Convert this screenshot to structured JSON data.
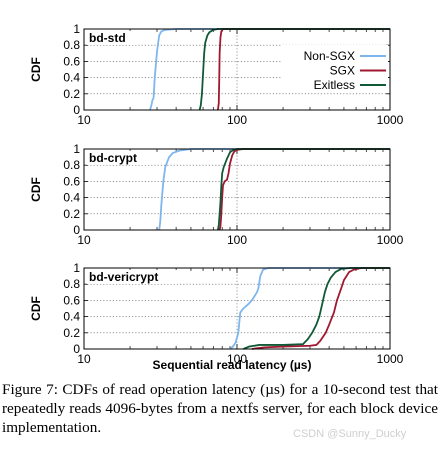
{
  "chart_data": {
    "type": "line",
    "x_scale": "log",
    "xlabel": "Sequential read latency (µs)",
    "ylabel": "CDF",
    "xlim": [
      10,
      1000
    ],
    "ylim": [
      0,
      1
    ],
    "x_ticks": [
      "10",
      "100",
      "1000"
    ],
    "y_ticks": [
      "0",
      "0.2",
      "0.4",
      "0.6",
      "0.8",
      "1"
    ],
    "grid": true,
    "legend": {
      "position": "top-right",
      "entries": [
        {
          "name": "Non-SGX",
          "color": "#7eb6ee"
        },
        {
          "name": "SGX",
          "color": "#a01830"
        },
        {
          "name": "Exitless",
          "color": "#0e5a36"
        }
      ]
    },
    "panels": [
      {
        "title": "bd-std",
        "series": [
          {
            "name": "Non-SGX",
            "color": "#7eb6ee",
            "points": [
              [
                27,
                0
              ],
              [
                27.5,
                0.05
              ],
              [
                28,
                0.12
              ],
              [
                28.5,
                0.15
              ],
              [
                29,
                0.4
              ],
              [
                30,
                0.72
              ],
              [
                31,
                0.92
              ],
              [
                32,
                0.97
              ],
              [
                34,
                0.99
              ],
              [
                40,
                1.0
              ],
              [
                1000,
                1.0
              ]
            ]
          },
          {
            "name": "SGX",
            "color": "#a01830",
            "points": [
              [
                75,
                0
              ],
              [
                76,
                0.08
              ],
              [
                76.5,
                0.35
              ],
              [
                77,
                0.7
              ],
              [
                78,
                0.9
              ],
              [
                79,
                0.97
              ],
              [
                81,
                1.0
              ],
              [
                1000,
                1.0
              ]
            ]
          },
          {
            "name": "Exitless",
            "color": "#0e5a36",
            "points": [
              [
                57,
                0
              ],
              [
                58,
                0.06
              ],
              [
                59,
                0.2
              ],
              [
                60,
                0.45
              ],
              [
                61,
                0.7
              ],
              [
                62,
                0.83
              ],
              [
                64,
                0.92
              ],
              [
                66,
                0.96
              ],
              [
                70,
                0.99
              ],
              [
                75,
                1.0
              ],
              [
                1000,
                1.0
              ]
            ]
          }
        ]
      },
      {
        "title": "bd-crypt",
        "series": [
          {
            "name": "Non-SGX",
            "color": "#7eb6ee",
            "points": [
              [
                31,
                0
              ],
              [
                31.5,
                0.1
              ],
              [
                32,
                0.3
              ],
              [
                33,
                0.6
              ],
              [
                34,
                0.78
              ],
              [
                36,
                0.9
              ],
              [
                38,
                0.95
              ],
              [
                42,
                0.98
              ],
              [
                50,
                1.0
              ],
              [
                1000,
                1.0
              ]
            ]
          },
          {
            "name": "SGX",
            "color": "#a01830",
            "points": [
              [
                77,
                0
              ],
              [
                78,
                0.05
              ],
              [
                79,
                0.2
              ],
              [
                80,
                0.4
              ],
              [
                81,
                0.55
              ],
              [
                83,
                0.6
              ],
              [
                86,
                0.62
              ],
              [
                88,
                0.7
              ],
              [
                90,
                0.82
              ],
              [
                93,
                0.92
              ],
              [
                96,
                0.97
              ],
              [
                100,
                0.99
              ],
              [
                110,
                1.0
              ],
              [
                1000,
                1.0
              ]
            ]
          },
          {
            "name": "Exitless",
            "color": "#0e5a36",
            "points": [
              [
                75,
                0
              ],
              [
                76,
                0.06
              ],
              [
                77,
                0.2
              ],
              [
                78,
                0.35
              ],
              [
                79,
                0.55
              ],
              [
                80,
                0.7
              ],
              [
                82,
                0.78
              ],
              [
                84,
                0.83
              ],
              [
                86,
                0.88
              ],
              [
                88,
                0.92
              ],
              [
                90,
                0.96
              ],
              [
                95,
                0.99
              ],
              [
                100,
                1.0
              ],
              [
                1000,
                1.0
              ]
            ]
          }
        ]
      },
      {
        "title": "bd-vericrypt",
        "series": [
          {
            "name": "Non-SGX",
            "color": "#7eb6ee",
            "points": [
              [
                90,
                0
              ],
              [
                94,
                0.03
              ],
              [
                98,
                0.08
              ],
              [
                102,
                0.2
              ],
              [
                105,
                0.45
              ],
              [
                110,
                0.5
              ],
              [
                118,
                0.55
              ],
              [
                125,
                0.6
              ],
              [
                130,
                0.65
              ],
              [
                135,
                0.7
              ],
              [
                138,
                0.75
              ],
              [
                142,
                0.9
              ],
              [
                148,
                0.98
              ],
              [
                160,
                1.0
              ],
              [
                1000,
                1.0
              ]
            ]
          },
          {
            "name": "SGX",
            "color": "#a01830",
            "points": [
              [
                125,
                0
              ],
              [
                150,
                0.02
              ],
              [
                200,
                0.03
              ],
              [
                300,
                0.04
              ],
              [
                330,
                0.05
              ],
              [
                350,
                0.1
              ],
              [
                380,
                0.2
              ],
              [
                400,
                0.3
              ],
              [
                430,
                0.45
              ],
              [
                450,
                0.6
              ],
              [
                480,
                0.75
              ],
              [
                500,
                0.85
              ],
              [
                540,
                0.95
              ],
              [
                580,
                0.98
              ],
              [
                650,
                1.0
              ],
              [
                1000,
                1.0
              ]
            ]
          },
          {
            "name": "Exitless",
            "color": "#0e5a36",
            "points": [
              [
                110,
                0
              ],
              [
                120,
                0.03
              ],
              [
                140,
                0.05
              ],
              [
                200,
                0.05
              ],
              [
                270,
                0.06
              ],
              [
                290,
                0.12
              ],
              [
                310,
                0.2
              ],
              [
                330,
                0.3
              ],
              [
                345,
                0.4
              ],
              [
                360,
                0.55
              ],
              [
                375,
                0.7
              ],
              [
                390,
                0.8
              ],
              [
                410,
                0.88
              ],
              [
                440,
                0.95
              ],
              [
                480,
                0.99
              ],
              [
                550,
                1.0
              ],
              [
                1000,
                1.0
              ]
            ]
          }
        ]
      }
    ]
  },
  "caption": "Figure 7:  CDFs of read operation latency (µs) for a 10-second test that repeatedly reads 4096-bytes from a nextfs server, for each block device implementation.",
  "watermark": "CSDN @Sunny_Ducky"
}
